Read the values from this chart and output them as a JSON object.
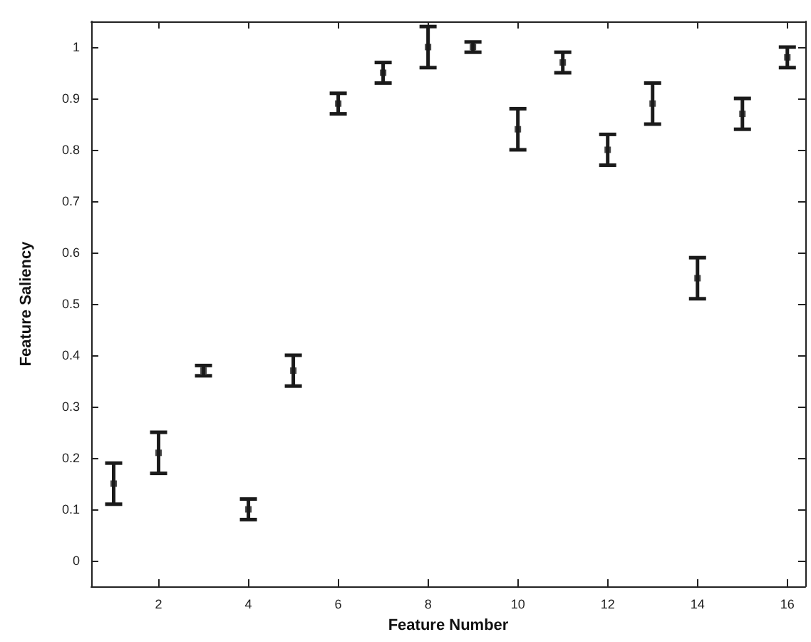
{
  "chart_data": {
    "type": "scatter",
    "xlabel": "Feature Number",
    "ylabel": "Feature Saliency",
    "x": [
      1,
      2,
      3,
      4,
      5,
      6,
      7,
      8,
      9,
      10,
      11,
      12,
      13,
      14,
      15,
      16
    ],
    "values": [
      0.15,
      0.21,
      0.37,
      0.1,
      0.37,
      0.89,
      0.95,
      1.0,
      1.0,
      0.84,
      0.97,
      0.8,
      0.89,
      0.55,
      0.87,
      0.98
    ],
    "errors": [
      0.04,
      0.04,
      0.01,
      0.02,
      0.03,
      0.02,
      0.02,
      0.04,
      0.01,
      0.04,
      0.02,
      0.03,
      0.04,
      0.04,
      0.03,
      0.02
    ],
    "color": "#1a1a1a",
    "marker": "square",
    "xlim": [
      0.5,
      16.4
    ],
    "xticks": [
      2,
      4,
      6,
      8,
      10,
      12,
      14,
      16
    ],
    "ylim": [
      -0.05,
      1.05
    ],
    "yticks": [
      0,
      0.1,
      0.2,
      0.3,
      0.4,
      0.5,
      0.6,
      0.7,
      0.8,
      0.9,
      1
    ],
    "grid": false
  }
}
